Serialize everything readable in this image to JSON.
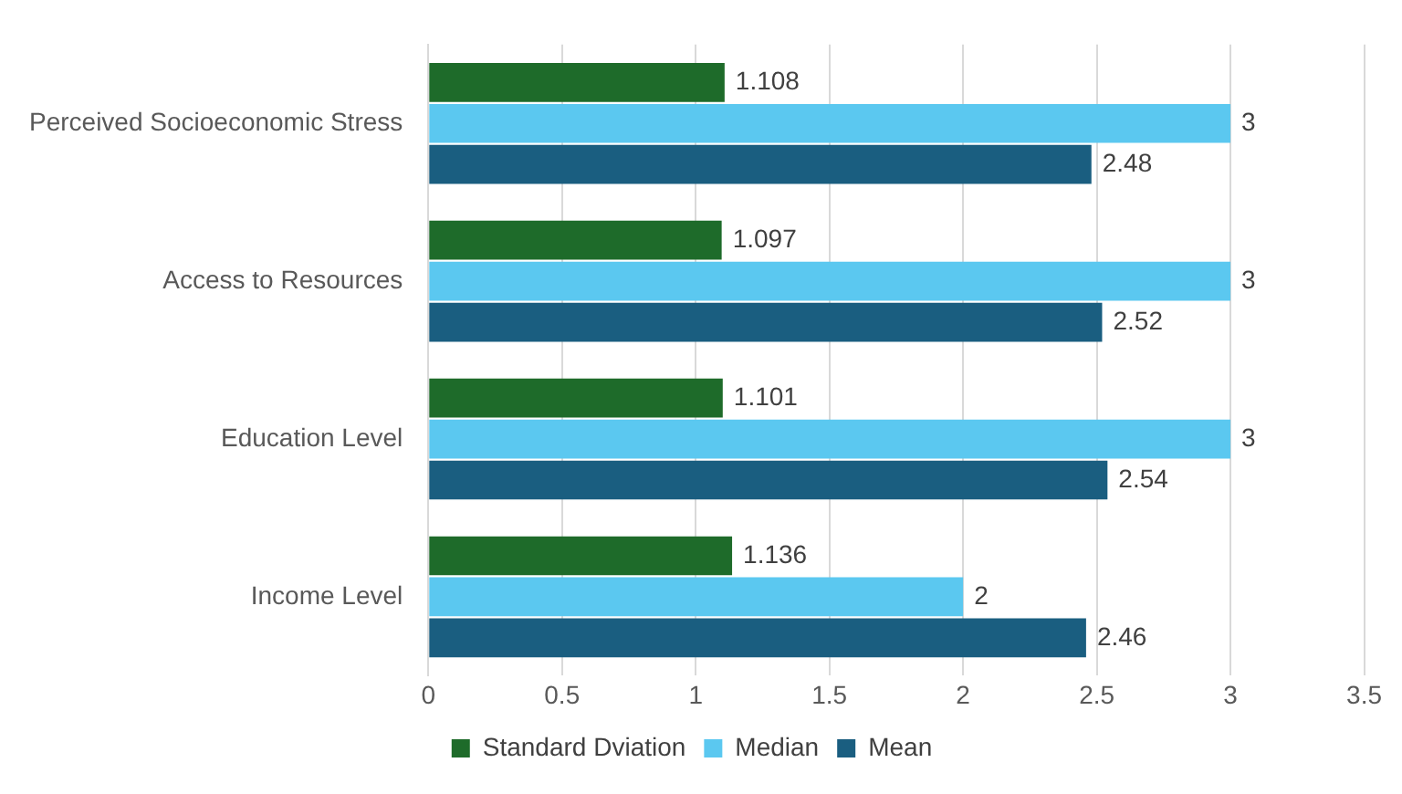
{
  "chart_data": {
    "type": "bar",
    "orientation": "horizontal",
    "categories": [
      "Perceived Socioeconomic Stress",
      "Access to Resources",
      "Education Level",
      "Income Level"
    ],
    "series": [
      {
        "name": "Standard Dviation",
        "color": "#1e6b2a",
        "values": [
          1.108,
          1.097,
          1.101,
          1.136
        ]
      },
      {
        "name": "Median",
        "color": "#5bc8f0",
        "values": [
          3,
          3,
          3,
          2
        ]
      },
      {
        "name": "Mean",
        "color": "#1a5e80",
        "values": [
          2.48,
          2.52,
          2.54,
          2.46
        ]
      }
    ],
    "xlim": [
      0,
      3.5
    ],
    "xticks": [
      0,
      0.5,
      1,
      1.5,
      2,
      2.5,
      3,
      3.5
    ],
    "grid": "x",
    "legend": "bottom",
    "data_labels": true
  }
}
